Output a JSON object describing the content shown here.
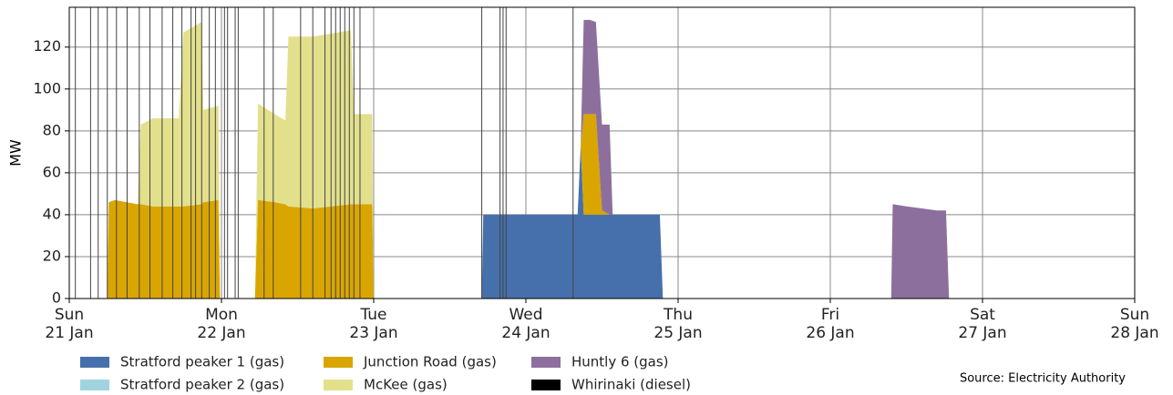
{
  "chart_data": {
    "type": "stacked_area",
    "ylabel": "MW",
    "source": "Source: Electricity Authority",
    "x": [
      0,
      0.25,
      0.26,
      0.3,
      0.45,
      0.47,
      0.55,
      0.72,
      0.75,
      0.87,
      0.88,
      0.98,
      0.99,
      1.22,
      1.24,
      1.35,
      1.42,
      1.44,
      1.6,
      1.85,
      1.87,
      1.99,
      2.0,
      2.71,
      2.72,
      3.34,
      3.36,
      3.38,
      3.42,
      3.46,
      3.5,
      3.55,
      3.57,
      3.88,
      3.9,
      5.4,
      5.41,
      5.5,
      5.7,
      5.76,
      5.78,
      7
    ],
    "series": [
      {
        "name": "Stratford peaker 1 (gas)",
        "color": "#4670ab",
        "values": [
          0,
          0,
          0,
          0,
          0,
          0,
          0,
          0,
          0,
          0,
          0,
          0,
          0,
          0,
          0,
          0,
          0,
          0,
          0,
          0,
          0,
          0,
          0,
          0,
          40,
          40,
          73,
          40,
          40,
          40,
          40,
          40,
          40,
          40,
          0,
          0,
          0,
          0,
          0,
          0,
          0,
          0
        ]
      },
      {
        "name": "Stratford peaker 2 (gas)",
        "color": "#9fd4df",
        "values": [
          0,
          0,
          0,
          0,
          0,
          0,
          0,
          0,
          0,
          0,
          0,
          0,
          0,
          0,
          0,
          0,
          0,
          0,
          0,
          0,
          0,
          0,
          0,
          0,
          0,
          0,
          0,
          0,
          0,
          0,
          0,
          0,
          0,
          0,
          0,
          0,
          0,
          0,
          0,
          0,
          0,
          0
        ]
      },
      {
        "name": "Junction Road (gas)",
        "color": "#d9a500",
        "values": [
          0,
          0,
          46,
          47,
          45,
          45,
          44,
          44,
          44,
          45,
          46,
          47,
          0,
          0,
          47,
          46,
          45,
          44,
          43,
          45,
          45,
          45,
          0,
          0,
          0,
          0,
          0,
          48,
          48,
          48,
          2,
          0,
          0,
          0,
          0,
          0,
          0,
          0,
          0,
          0,
          0,
          0
        ]
      },
      {
        "name": "McKee (gas)",
        "color": "#e3e08c",
        "values": [
          0,
          0,
          0,
          0,
          0,
          38,
          42,
          42,
          83,
          87,
          44,
          45,
          0,
          0,
          46,
          42,
          40,
          81,
          82,
          83,
          43,
          43,
          0,
          0,
          0,
          0,
          0,
          0,
          0,
          0,
          0,
          0,
          0,
          0,
          0,
          0,
          0,
          0,
          0,
          0,
          0,
          0
        ]
      },
      {
        "name": "Huntly 6 (gas)",
        "color": "#8d6f9d",
        "values": [
          0,
          0,
          0,
          0,
          0,
          0,
          0,
          0,
          0,
          0,
          0,
          0,
          0,
          0,
          0,
          0,
          0,
          0,
          0,
          0,
          0,
          0,
          0,
          0,
          0,
          0,
          0,
          45,
          45,
          44,
          41,
          43,
          0,
          0,
          0,
          0,
          45,
          44,
          42,
          42,
          0,
          0
        ]
      },
      {
        "name": "Whirinaki (diesel)",
        "color": "#000000",
        "values": [
          0,
          0,
          0,
          0,
          0,
          0,
          0,
          0,
          0,
          0,
          0,
          0,
          0,
          0,
          0,
          0,
          0,
          0,
          0,
          0,
          0,
          0,
          0,
          0,
          0,
          0,
          0,
          0,
          0,
          0,
          0,
          0,
          0,
          0,
          0,
          0,
          0,
          0,
          0,
          0,
          0,
          0
        ]
      }
    ],
    "vlines": [
      0.04,
      0.14,
      0.19,
      0.25,
      0.31,
      0.38,
      0.46,
      0.53,
      0.61,
      0.68,
      0.74,
      0.8,
      0.83,
      0.87,
      0.92,
      0.96,
      1.02,
      1.04,
      1.09,
      1.11,
      1.28,
      1.34,
      1.52,
      1.6,
      1.68,
      1.72,
      1.75,
      1.78,
      1.81,
      1.84,
      1.87,
      1.91,
      2.71,
      2.83,
      2.85,
      2.87,
      3.31
    ],
    "vline_color": "#444444",
    "xlim": [
      0,
      7
    ],
    "xticks": [
      {
        "value": 0,
        "label": "Sun\n21 Jan"
      },
      {
        "value": 1,
        "label": "Mon\n22 Jan"
      },
      {
        "value": 2,
        "label": "Tue\n23 Jan"
      },
      {
        "value": 3,
        "label": "Wed\n24 Jan"
      },
      {
        "value": 4,
        "label": "Thu\n25 Jan"
      },
      {
        "value": 5,
        "label": "Fri\n26 Jan"
      },
      {
        "value": 6,
        "label": "Sat\n27 Jan"
      },
      {
        "value": 7,
        "label": "Sun\n28 Jan"
      }
    ],
    "ylim": [
      0,
      139
    ],
    "yticks": [
      0,
      20,
      40,
      60,
      80,
      100,
      120
    ],
    "grid": true
  }
}
